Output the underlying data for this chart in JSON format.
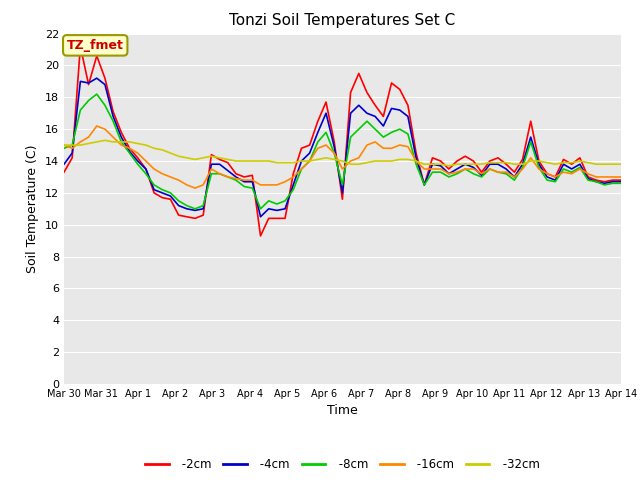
{
  "title": "Tonzi Soil Temperatures Set C",
  "xlabel": "Time",
  "ylabel": "Soil Temperature (C)",
  "ylim": [
    0,
    22
  ],
  "yticks": [
    0,
    2,
    4,
    6,
    8,
    10,
    12,
    14,
    16,
    18,
    20,
    22
  ],
  "annotation_text": "TZ_fmet",
  "fig_bg_color": "#ffffff",
  "plot_bg_color": "#e8e8e8",
  "grid_color": "#ffffff",
  "colors": {
    "-2cm": "#ff0000",
    "-4cm": "#0000cc",
    "-8cm": "#00cc00",
    "-16cm": "#ff8800",
    "-32cm": "#cccc00"
  },
  "xtick_labels": [
    "Mar 30",
    "Mar 31",
    "Apr 1",
    "Apr 2",
    "Apr 3",
    "Apr 4",
    "Apr 5",
    "Apr 6",
    "Apr 7",
    "Apr 8",
    "Apr 9",
    "Apr 10",
    "Apr 11",
    "Apr 12",
    "Apr 13",
    "Apr 14"
  ],
  "series": {
    "-2cm": [
      13.3,
      14.2,
      21.2,
      18.8,
      20.6,
      19.2,
      17.1,
      15.8,
      14.8,
      14.2,
      13.5,
      12.0,
      11.7,
      11.6,
      10.6,
      10.5,
      10.4,
      10.6,
      14.4,
      14.1,
      13.9,
      13.2,
      13.0,
      13.1,
      9.3,
      10.4,
      10.4,
      10.4,
      13.2,
      14.8,
      15.0,
      16.5,
      17.7,
      15.2,
      11.6,
      18.3,
      19.5,
      18.3,
      17.5,
      16.8,
      18.9,
      18.5,
      17.5,
      14.5,
      12.5,
      14.2,
      14.0,
      13.5,
      14.0,
      14.3,
      14.0,
      13.3,
      14.0,
      14.2,
      13.8,
      13.3,
      14.1,
      16.5,
      14.0,
      13.2,
      13.0,
      14.1,
      13.8,
      14.2,
      13.0,
      12.8,
      12.7,
      12.8,
      12.8
    ],
    "-4cm": [
      13.8,
      14.5,
      19.0,
      18.9,
      19.2,
      18.8,
      16.8,
      15.5,
      14.6,
      14.0,
      13.5,
      12.2,
      12.0,
      11.8,
      11.2,
      11.0,
      10.9,
      11.0,
      13.8,
      13.8,
      13.4,
      13.0,
      12.7,
      12.7,
      10.5,
      11.0,
      10.9,
      11.0,
      12.5,
      14.0,
      14.5,
      15.8,
      17.0,
      14.9,
      12.0,
      17.0,
      17.5,
      17.0,
      16.8,
      16.2,
      17.3,
      17.2,
      16.8,
      14.2,
      12.5,
      13.8,
      13.7,
      13.2,
      13.5,
      13.8,
      13.6,
      13.1,
      13.8,
      13.8,
      13.5,
      13.0,
      13.8,
      15.5,
      13.8,
      13.0,
      12.8,
      13.8,
      13.5,
      13.8,
      12.9,
      12.7,
      12.6,
      12.7,
      12.7
    ],
    "-8cm": [
      14.8,
      15.0,
      17.2,
      17.8,
      18.2,
      17.5,
      16.5,
      15.2,
      14.5,
      13.8,
      13.2,
      12.5,
      12.2,
      12.0,
      11.5,
      11.2,
      11.0,
      11.2,
      13.2,
      13.2,
      13.0,
      12.8,
      12.4,
      12.3,
      11.0,
      11.5,
      11.3,
      11.5,
      12.2,
      13.5,
      14.0,
      15.2,
      15.8,
      14.5,
      12.5,
      15.5,
      16.0,
      16.5,
      16.0,
      15.5,
      15.8,
      16.0,
      15.7,
      13.8,
      12.5,
      13.3,
      13.3,
      13.0,
      13.2,
      13.5,
      13.2,
      13.0,
      13.5,
      13.3,
      13.2,
      12.8,
      13.6,
      15.2,
      13.6,
      12.8,
      12.7,
      13.5,
      13.3,
      13.6,
      12.8,
      12.7,
      12.5,
      12.6,
      12.6
    ],
    "-16cm": [
      15.0,
      14.8,
      15.2,
      15.5,
      16.2,
      16.0,
      15.5,
      15.0,
      14.8,
      14.5,
      14.0,
      13.5,
      13.2,
      13.0,
      12.8,
      12.5,
      12.3,
      12.5,
      13.5,
      13.2,
      13.0,
      12.9,
      12.8,
      12.8,
      12.5,
      12.5,
      12.5,
      12.7,
      13.0,
      13.5,
      14.0,
      14.8,
      15.0,
      14.5,
      13.5,
      14.0,
      14.2,
      15.0,
      15.2,
      14.8,
      14.8,
      15.0,
      14.9,
      14.0,
      13.5,
      13.5,
      13.5,
      13.2,
      13.3,
      13.5,
      13.5,
      13.2,
      13.5,
      13.3,
      13.3,
      13.0,
      13.5,
      14.2,
      13.5,
      13.2,
      13.0,
      13.3,
      13.2,
      13.5,
      13.2,
      13.0,
      13.0,
      13.0,
      13.0
    ],
    "-32cm": [
      15.0,
      15.0,
      15.0,
      15.1,
      15.2,
      15.3,
      15.2,
      15.2,
      15.2,
      15.1,
      15.0,
      14.8,
      14.7,
      14.5,
      14.3,
      14.2,
      14.1,
      14.2,
      14.3,
      14.2,
      14.1,
      14.0,
      14.0,
      14.0,
      14.0,
      14.0,
      13.9,
      13.9,
      13.9,
      14.0,
      14.0,
      14.1,
      14.2,
      14.1,
      14.0,
      13.8,
      13.8,
      13.9,
      14.0,
      14.0,
      14.0,
      14.1,
      14.1,
      14.0,
      13.8,
      13.8,
      13.8,
      13.7,
      13.8,
      13.8,
      13.8,
      13.8,
      13.9,
      13.9,
      13.9,
      13.8,
      13.8,
      14.0,
      14.0,
      13.9,
      13.8,
      13.9,
      13.9,
      14.0,
      13.9,
      13.8,
      13.8,
      13.8,
      13.8
    ]
  }
}
